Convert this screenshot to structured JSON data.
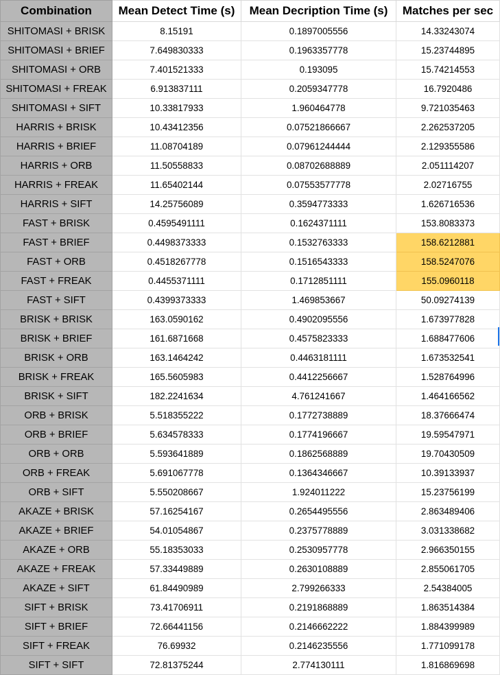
{
  "sheet": {
    "headers": [
      "Combination",
      "Mean Detect Time (s)",
      "Mean Decription Time (s)",
      "Matches per sec"
    ],
    "highlight_color": "#ffd666",
    "label_fill_color": "#b7b7b7",
    "rows": [
      {
        "combination": "SHITOMASI + BRISK",
        "detect": "8.15191",
        "description": "0.1897005556",
        "matches": "14.33243074",
        "highlight": false
      },
      {
        "combination": "SHITOMASI + BRIEF",
        "detect": "7.649830333",
        "description": "0.1963357778",
        "matches": "15.23744895",
        "highlight": false
      },
      {
        "combination": "SHITOMASI + ORB",
        "detect": "7.401521333",
        "description": "0.193095",
        "matches": "15.74214553",
        "highlight": false
      },
      {
        "combination": "SHITOMASI + FREAK",
        "detect": "6.913837111",
        "description": "0.2059347778",
        "matches": "16.7920486",
        "highlight": false
      },
      {
        "combination": "SHITOMASI + SIFT",
        "detect": "10.33817933",
        "description": "1.960464778",
        "matches": "9.721035463",
        "highlight": false
      },
      {
        "combination": "HARRIS + BRISK",
        "detect": "10.43412356",
        "description": "0.07521866667",
        "matches": "2.262537205",
        "highlight": false
      },
      {
        "combination": "HARRIS + BRIEF",
        "detect": "11.08704189",
        "description": "0.07961244444",
        "matches": "2.129355586",
        "highlight": false
      },
      {
        "combination": "HARRIS + ORB",
        "detect": "11.50558833",
        "description": "0.08702688889",
        "matches": "2.051114207",
        "highlight": false
      },
      {
        "combination": "HARRIS + FREAK",
        "detect": "11.65402144",
        "description": "0.07553577778",
        "matches": "2.02716755",
        "highlight": false
      },
      {
        "combination": "HARRIS + SIFT",
        "detect": "14.25756089",
        "description": "0.3594773333",
        "matches": "1.626716536",
        "highlight": false
      },
      {
        "combination": "FAST + BRISK",
        "detect": "0.4595491111",
        "description": "0.1624371111",
        "matches": "153.8083373",
        "highlight": false
      },
      {
        "combination": "FAST + BRIEF",
        "detect": "0.4498373333",
        "description": "0.1532763333",
        "matches": "158.6212881",
        "highlight": true
      },
      {
        "combination": "FAST + ORB",
        "detect": "0.4518267778",
        "description": "0.1516543333",
        "matches": "158.5247076",
        "highlight": true
      },
      {
        "combination": "FAST + FREAK",
        "detect": "0.4455371111",
        "description": "0.1712851111",
        "matches": "155.0960118",
        "highlight": true
      },
      {
        "combination": "FAST + SIFT",
        "detect": "0.4399373333",
        "description": "1.469853667",
        "matches": "50.09274139",
        "highlight": false
      },
      {
        "combination": "BRISK + BRISK",
        "detect": "163.0590162",
        "description": "0.4902095556",
        "matches": "1.673977828",
        "highlight": false
      },
      {
        "combination": "BRISK + BRIEF",
        "detect": "161.6871668",
        "description": "0.4575823333",
        "matches": "1.688477606",
        "highlight": false
      },
      {
        "combination": "BRISK + ORB",
        "detect": "163.1464242",
        "description": "0.4463181111",
        "matches": "1.673532541",
        "highlight": false
      },
      {
        "combination": "BRISK + FREAK",
        "detect": "165.5605983",
        "description": "0.4412256667",
        "matches": "1.528764996",
        "highlight": false
      },
      {
        "combination": "BRISK + SIFT",
        "detect": "182.2241634",
        "description": "4.761241667",
        "matches": "1.464166562",
        "highlight": false
      },
      {
        "combination": "ORB + BRISK",
        "detect": "5.518355222",
        "description": "0.1772738889",
        "matches": "18.37666474",
        "highlight": false
      },
      {
        "combination": "ORB + BRIEF",
        "detect": "5.634578333",
        "description": "0.1774196667",
        "matches": "19.59547971",
        "highlight": false
      },
      {
        "combination": "ORB + ORB",
        "detect": "5.593641889",
        "description": "0.1862568889",
        "matches": "19.70430509",
        "highlight": false
      },
      {
        "combination": "ORB + FREAK",
        "detect": "5.691067778",
        "description": "0.1364346667",
        "matches": "10.39133937",
        "highlight": false
      },
      {
        "combination": "ORB + SIFT",
        "detect": "5.550208667",
        "description": "1.924011222",
        "matches": "15.23756199",
        "highlight": false
      },
      {
        "combination": "AKAZE + BRISK",
        "detect": "57.16254167",
        "description": "0.2654495556",
        "matches": "2.863489406",
        "highlight": false
      },
      {
        "combination": "AKAZE + BRIEF",
        "detect": "54.01054867",
        "description": "0.2375778889",
        "matches": "3.031338682",
        "highlight": false
      },
      {
        "combination": "AKAZE + ORB",
        "detect": "55.18353033",
        "description": "0.2530957778",
        "matches": "2.966350155",
        "highlight": false
      },
      {
        "combination": "AKAZE + FREAK",
        "detect": "57.33449889",
        "description": "0.2630108889",
        "matches": "2.855061705",
        "highlight": false
      },
      {
        "combination": "AKAZE + SIFT",
        "detect": "61.84490989",
        "description": "2.799266333",
        "matches": "2.54384005",
        "highlight": false
      },
      {
        "combination": "SIFT + BRISK",
        "detect": "73.41706911",
        "description": "0.2191868889",
        "matches": "1.863514384",
        "highlight": false
      },
      {
        "combination": "SIFT + BRIEF",
        "detect": "72.66441156",
        "description": "0.2146662222",
        "matches": "1.884399989",
        "highlight": false
      },
      {
        "combination": "SIFT + FREAK",
        "detect": "76.69932",
        "description": "0.2146235556",
        "matches": "1.771099178",
        "highlight": false
      },
      {
        "combination": "SIFT + SIFT",
        "detect": "72.81375244",
        "description": "2.774130111",
        "matches": "1.816869698",
        "highlight": false
      }
    ]
  }
}
